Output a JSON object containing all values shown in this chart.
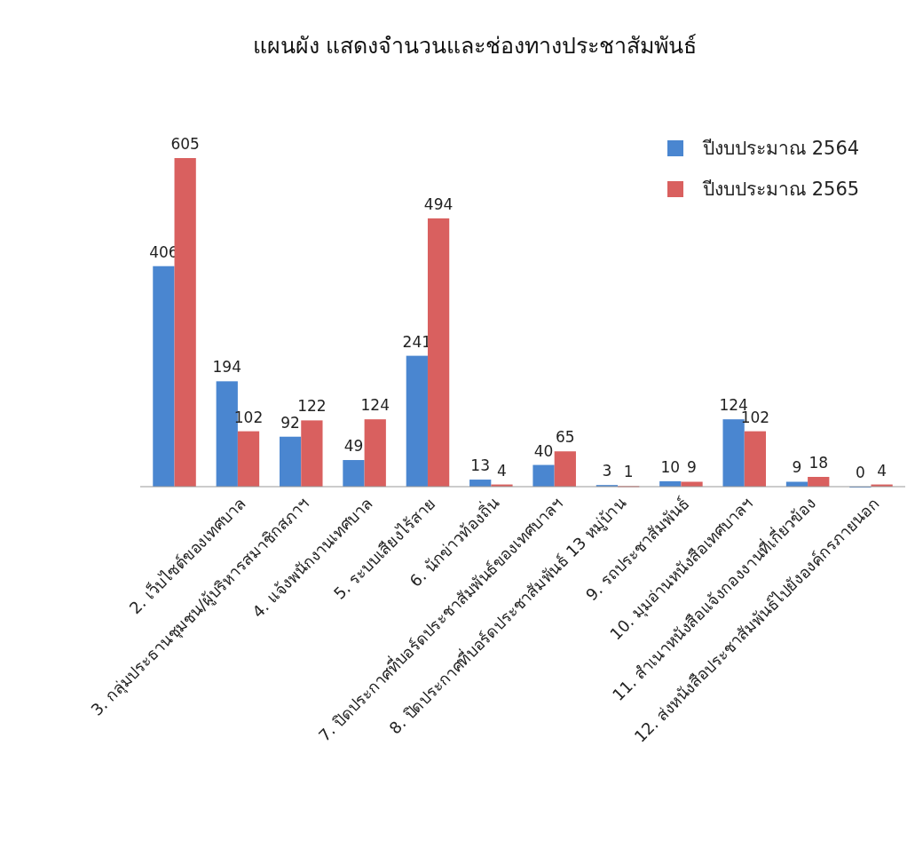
{
  "chart_data": {
    "type": "bar",
    "title": "แผนผัง แสดงจำนวนและช่องทางประชาสัมพันธ์",
    "categories": [
      null,
      "2. เว็บไซต์ของเทศบาล",
      "3. กลุ่มประธานชุมชน/ผู้บริหารสมาชิกสภาฯ",
      "4. แจ้งพนักงานเทศบาล",
      "5. ระบบเสียงไร้สาย",
      "6. นักข่าวท้องถิ่น",
      "7. ปิดประกาศที่บอร์ดประชาสัมพันธ์ของเทศบาลฯ",
      "8. ปิดประกาศที่บอร์ดประชาสัมพันธ์ 13 หมู่บ้าน",
      "9. รถประชาสัมพันธ์",
      "10. มุมอ่านหนังสือเทศบาลฯ",
      "11. สำเนาหนังสือแจ้งกองงานที่เกี่ยวข้อง",
      "12. ส่งหนังสือประชาสัมพันธ์ไปยังองค์กรภายนอก"
    ],
    "series": [
      {
        "name": "ปีงบประมาณ 2564",
        "color": "#4a86d0",
        "values": [
          406,
          194,
          92,
          49,
          241,
          13,
          40,
          3,
          10,
          124,
          9,
          0
        ]
      },
      {
        "name": "ปีงบประมาณ 2565",
        "color": "#d9605f",
        "values": [
          605,
          102,
          122,
          124,
          494,
          4,
          65,
          1,
          9,
          102,
          18,
          4
        ]
      }
    ],
    "data_labels": true,
    "legend": "top right",
    "grid": false
  }
}
